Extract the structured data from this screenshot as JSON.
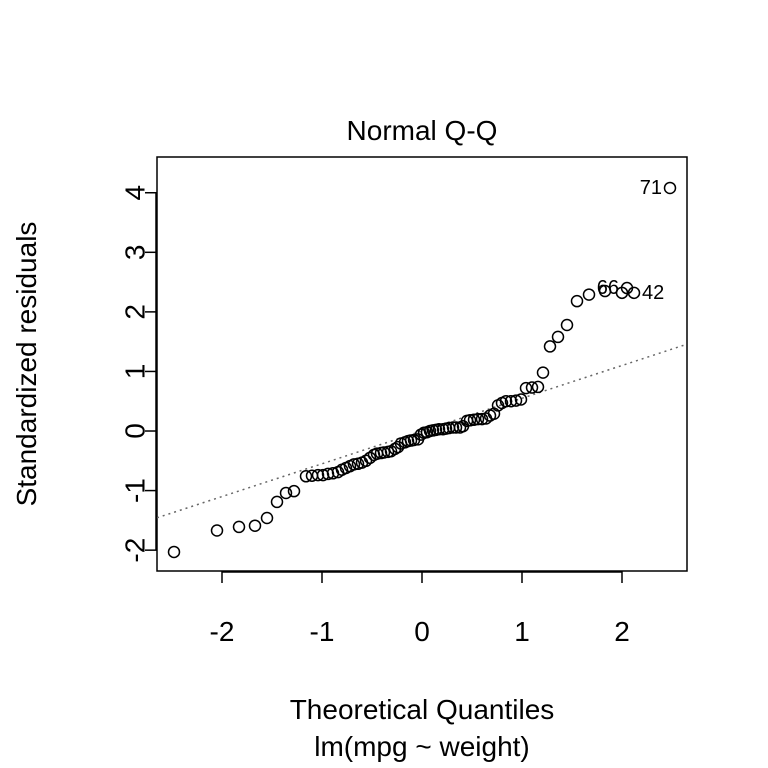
{
  "chart_data": {
    "type": "scatter",
    "title": "Normal Q-Q",
    "xlabel": "Theoretical Quantiles",
    "ylabel": "Standardized residuals",
    "subtitle": "lm(mpg ~ weight)",
    "xlim": [
      -2.65,
      2.65
    ],
    "ylim": [
      -2.35,
      4.6
    ],
    "x_ticks": [
      -2,
      -1,
      0,
      1,
      2
    ],
    "y_ticks": [
      -2,
      -1,
      0,
      1,
      2,
      3,
      4
    ],
    "x_tick_labels": [
      "-2",
      "-1",
      "0",
      "1",
      "2"
    ],
    "y_tick_labels": [
      "-2",
      "-1",
      "0",
      "1",
      "2",
      "3",
      "4"
    ],
    "grid": false,
    "reference_line": {
      "intercept": 0.0,
      "slope": 0.55,
      "style": "dotted",
      "color": "#666666"
    },
    "points": [
      {
        "x": -2.48,
        "y": -2.03
      },
      {
        "x": -2.05,
        "y": -1.67
      },
      {
        "x": -1.83,
        "y": -1.61
      },
      {
        "x": -1.67,
        "y": -1.59
      },
      {
        "x": -1.55,
        "y": -1.46
      },
      {
        "x": -1.45,
        "y": -1.19
      },
      {
        "x": -1.36,
        "y": -1.04
      },
      {
        "x": -1.28,
        "y": -1.01
      },
      {
        "x": -1.16,
        "y": -0.76
      },
      {
        "x": -1.1,
        "y": -0.75
      },
      {
        "x": -1.04,
        "y": -0.74
      },
      {
        "x": -0.99,
        "y": -0.74
      },
      {
        "x": -0.94,
        "y": -0.72
      },
      {
        "x": -0.89,
        "y": -0.71
      },
      {
        "x": -0.84,
        "y": -0.69
      },
      {
        "x": -0.8,
        "y": -0.65
      },
      {
        "x": -0.76,
        "y": -0.62
      },
      {
        "x": -0.72,
        "y": -0.59
      },
      {
        "x": -0.68,
        "y": -0.56
      },
      {
        "x": -0.64,
        "y": -0.55
      },
      {
        "x": -0.6,
        "y": -0.53
      },
      {
        "x": -0.56,
        "y": -0.5
      },
      {
        "x": -0.52,
        "y": -0.45
      },
      {
        "x": -0.48,
        "y": -0.4
      },
      {
        "x": -0.45,
        "y": -0.38
      },
      {
        "x": -0.41,
        "y": -0.37
      },
      {
        "x": -0.38,
        "y": -0.36
      },
      {
        "x": -0.34,
        "y": -0.35
      },
      {
        "x": -0.31,
        "y": -0.34
      },
      {
        "x": -0.27,
        "y": -0.3
      },
      {
        "x": -0.24,
        "y": -0.27
      },
      {
        "x": -0.21,
        "y": -0.21
      },
      {
        "x": -0.17,
        "y": -0.19
      },
      {
        "x": -0.14,
        "y": -0.17
      },
      {
        "x": -0.11,
        "y": -0.16
      },
      {
        "x": -0.08,
        "y": -0.15
      },
      {
        "x": -0.04,
        "y": -0.14
      },
      {
        "x": -0.01,
        "y": -0.06
      },
      {
        "x": 0.02,
        "y": -0.03
      },
      {
        "x": 0.05,
        "y": -0.02
      },
      {
        "x": 0.08,
        "y": 0.0
      },
      {
        "x": 0.11,
        "y": 0.01
      },
      {
        "x": 0.14,
        "y": 0.02
      },
      {
        "x": 0.17,
        "y": 0.03
      },
      {
        "x": 0.21,
        "y": 0.03
      },
      {
        "x": 0.24,
        "y": 0.04
      },
      {
        "x": 0.27,
        "y": 0.05
      },
      {
        "x": 0.31,
        "y": 0.06
      },
      {
        "x": 0.34,
        "y": 0.06
      },
      {
        "x": 0.38,
        "y": 0.06
      },
      {
        "x": 0.41,
        "y": 0.08
      },
      {
        "x": 0.45,
        "y": 0.17
      },
      {
        "x": 0.48,
        "y": 0.18
      },
      {
        "x": 0.52,
        "y": 0.19
      },
      {
        "x": 0.56,
        "y": 0.2
      },
      {
        "x": 0.6,
        "y": 0.2
      },
      {
        "x": 0.64,
        "y": 0.21
      },
      {
        "x": 0.68,
        "y": 0.26
      },
      {
        "x": 0.72,
        "y": 0.29
      },
      {
        "x": 0.76,
        "y": 0.43
      },
      {
        "x": 0.8,
        "y": 0.47
      },
      {
        "x": 0.84,
        "y": 0.5
      },
      {
        "x": 0.89,
        "y": 0.5
      },
      {
        "x": 0.94,
        "y": 0.51
      },
      {
        "x": 0.99,
        "y": 0.53
      },
      {
        "x": 1.04,
        "y": 0.72
      },
      {
        "x": 1.1,
        "y": 0.73
      },
      {
        "x": 1.16,
        "y": 0.74
      },
      {
        "x": 1.21,
        "y": 0.98
      },
      {
        "x": 1.28,
        "y": 1.42
      },
      {
        "x": 1.36,
        "y": 1.58
      },
      {
        "x": 1.45,
        "y": 1.78
      },
      {
        "x": 1.55,
        "y": 2.18
      },
      {
        "x": 1.67,
        "y": 2.29
      },
      {
        "x": 1.83,
        "y": 2.35
      },
      {
        "x": 2.05,
        "y": 2.4
      },
      {
        "x": 2.0,
        "y": 2.32
      },
      {
        "x": 2.12,
        "y": 2.32
      },
      {
        "x": 2.48,
        "y": 4.08
      }
    ],
    "point_labels": [
      {
        "text": "71",
        "x": 2.48,
        "y": 4.08,
        "side": "left"
      },
      {
        "text": "42",
        "x": 2.12,
        "y": 2.32,
        "side": "right"
      },
      {
        "text": "66",
        "x": 2.05,
        "y": 2.4,
        "side": "left"
      }
    ]
  }
}
